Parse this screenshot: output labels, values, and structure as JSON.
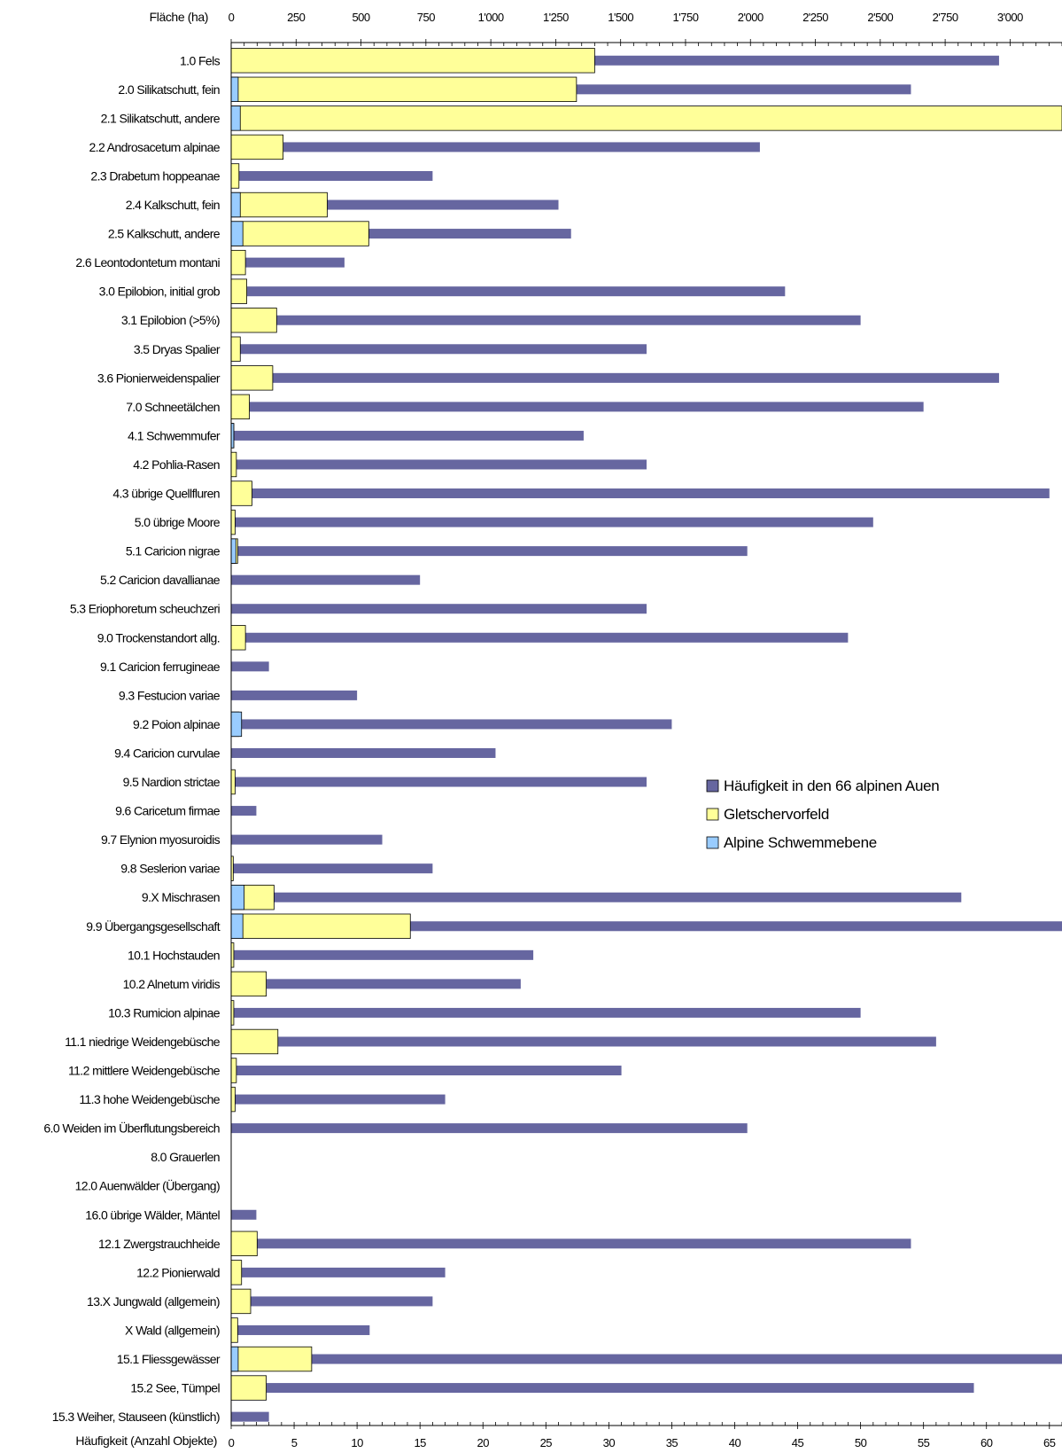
{
  "chart_data": {
    "type": "bar",
    "orientation": "horizontal",
    "top_axis": {
      "label": "Fläche  (ha)",
      "min": 0,
      "max": 3200,
      "major_step": 250,
      "minor_step": 50,
      "ticks": [
        "0",
        "250",
        "500",
        "750",
        "1'000",
        "1'250",
        "1'500",
        "1'750",
        "2'000",
        "2'250",
        "2'500",
        "2'750",
        "3'000"
      ]
    },
    "bottom_axis": {
      "label": "Häufigkeit (Anzahl Objekte)",
      "min": 0,
      "max": 66,
      "major_step": 5,
      "minor_step": 1,
      "ticks": [
        "0",
        "5",
        "10",
        "15",
        "20",
        "25",
        "30",
        "35",
        "40",
        "45",
        "50",
        "55",
        "60",
        "65"
      ]
    },
    "legend": {
      "placement": "center-right",
      "entries": [
        "Häufigkeit in den 66 alpinen Auen",
        "Gletschervorfeld",
        "Alpine Schwemmebene"
      ]
    },
    "colors": {
      "frequency": "#6666a0",
      "glacier": "#ffff99",
      "floodplain": "#99ccff",
      "outline": "#000000"
    },
    "categories": [
      "1.0  Fels",
      "2.0  Silikatschutt, fein",
      "2.1  Silikatschutt, andere",
      "2.2  Androsacetum alpinae",
      "2.3  Drabetum hoppeanae",
      "2.4  Kalkschutt, fein",
      "2.5  Kalkschutt, andere",
      "2.6  Leontodontetum montani",
      "3.0  Epilobion, initial grob",
      "3.1  Epilobion (>5%)",
      "3.5  Dryas Spalier",
      "3.6  Pionierweidenspalier",
      "7.0  Schneetälchen",
      "4.1  Schwemmufer",
      "4.2  Pohlia-Rasen",
      "4.3  übrige Quellfluren",
      "5.0  übrige Moore",
      "5.1  Caricion nigrae",
      "5.2  Caricion davallianae",
      "5.3  Eriophoretum scheuchzeri",
      "9.0  Trockenstandort allg.",
      "9.1  Caricion ferrugineae",
      "9.3  Festucion variae",
      "9.2  Poion alpinae",
      "9.4  Caricion curvulae",
      "9.5  Nardion strictae",
      "9.6  Caricetum firmae",
      "9.7  Elynion myosuroidis",
      "9.8  Seslerion variae",
      "9.X  Mischrasen",
      "9.9  Übergangsgesellschaft",
      "10.1  Hochstauden",
      "10.2  Alnetum viridis",
      "10.3  Rumicion alpinae",
      "11.1  niedrige Weidengebüsche",
      "11.2  mittlere Weidengebüsche",
      "11.3  hohe Weidengebüsche",
      "6.0  Weiden im Überflutungsbereich",
      "8.0  Grauerlen",
      "12.0  Auenwälder (Übergang)",
      "16.0  übrige Wälder, Mäntel",
      "12.1  Zwergstrauchheide",
      "12.2  Pionierwald",
      "13.X  Jungwald (allgemein)",
      "X  Wald (allgemein)",
      "15.1  Fliessgewässer",
      "15.2  See, Tümpel",
      "15.3  Weiher, Stauseen (künstlich)"
    ],
    "series": [
      {
        "name": "Häufigkeit in den 66 alpinen Auen",
        "axis": "bottom",
        "values": [
          61,
          54,
          66,
          42,
          16,
          26,
          27,
          9,
          44,
          50,
          33,
          61,
          55,
          28,
          33,
          65,
          51,
          41,
          15,
          33,
          49,
          3,
          10,
          35,
          21,
          33,
          2,
          12,
          16,
          58,
          66,
          24,
          23,
          50,
          56,
          31,
          17,
          41,
          0,
          0,
          2,
          54,
          17,
          16,
          11,
          66,
          59,
          3
        ]
      },
      {
        "name": "Gletschervorfeld",
        "axis": "top",
        "values": [
          1400,
          1330,
          3200,
          200,
          30,
          370,
          530,
          55,
          60,
          175,
          35,
          160,
          70,
          10,
          20,
          80,
          15,
          25,
          0,
          0,
          55,
          0,
          0,
          30,
          0,
          15,
          0,
          0,
          8,
          165,
          690,
          10,
          135,
          10,
          180,
          20,
          15,
          0,
          0,
          0,
          0,
          100,
          40,
          75,
          25,
          310,
          135,
          0
        ]
      },
      {
        "name": "Alpine Schwemmebene",
        "axis": "top",
        "values": [
          0,
          27,
          35,
          0,
          0,
          35,
          45,
          0,
          0,
          0,
          0,
          0,
          0,
          10,
          0,
          0,
          0,
          18,
          0,
          0,
          0,
          0,
          0,
          40,
          0,
          0,
          0,
          0,
          0,
          50,
          45,
          0,
          0,
          0,
          0,
          0,
          0,
          0,
          0,
          0,
          0,
          0,
          0,
          0,
          0,
          27,
          0,
          0
        ]
      }
    ]
  }
}
